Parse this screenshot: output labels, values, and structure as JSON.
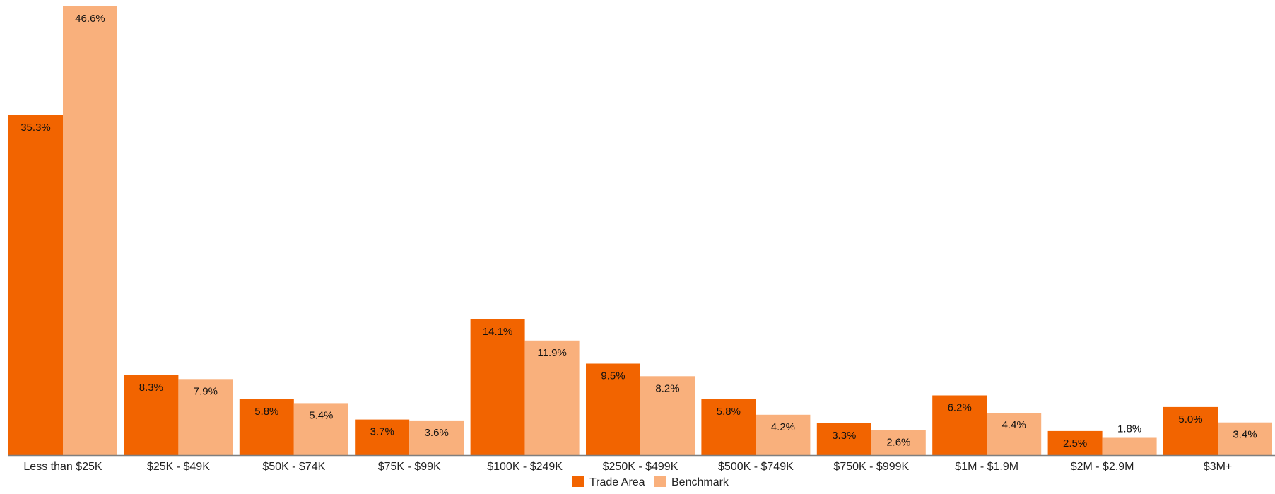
{
  "chart_data": {
    "type": "bar",
    "title": "",
    "xlabel": "",
    "ylabel": "",
    "ylim": [
      0,
      47
    ],
    "grid": false,
    "legend_position": "bottom-center",
    "categories": [
      "Less than $25K",
      "$25K - $49K",
      "$50K - $74K",
      "$75K - $99K",
      "$100K - $249K",
      "$250K - $499K",
      "$500K - $749K",
      "$750K - $999K",
      "$1M - $1.9M",
      "$2M - $2.9M",
      "$3M+"
    ],
    "series": [
      {
        "name": "Trade Area",
        "color": "#f26400",
        "values": [
          35.3,
          8.3,
          5.8,
          3.7,
          14.1,
          9.5,
          5.8,
          3.3,
          6.2,
          2.5,
          5.0
        ],
        "labels": [
          "35.3%",
          "8.3%",
          "5.8%",
          "3.7%",
          "14.1%",
          "9.5%",
          "5.8%",
          "3.3%",
          "6.2%",
          "2.5%",
          "5.0%"
        ]
      },
      {
        "name": "Benchmark",
        "color": "#f9b07c",
        "values": [
          46.6,
          7.9,
          5.4,
          3.6,
          11.9,
          8.2,
          4.2,
          2.6,
          4.4,
          1.8,
          3.4
        ],
        "labels": [
          "46.6%",
          "7.9%",
          "5.4%",
          "3.6%",
          "11.9%",
          "8.2%",
          "4.2%",
          "2.6%",
          "4.4%",
          "1.8%",
          "3.4%"
        ]
      }
    ],
    "axis_color": "#7f7f7f"
  }
}
